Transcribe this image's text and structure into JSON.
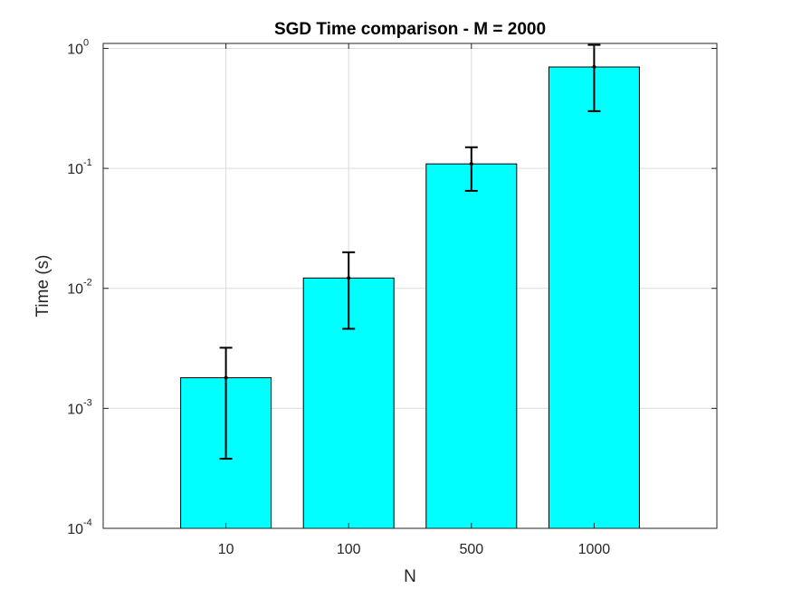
{
  "chart_data": {
    "type": "bar",
    "title": "SGD Time comparison - M = 2000",
    "xlabel": "N",
    "ylabel": "Time (s)",
    "categories": [
      "10",
      "100",
      "500",
      "1000"
    ],
    "values": [
      0.0018,
      0.0122,
      0.109,
      0.7
    ],
    "error_low": [
      0.00038,
      0.0046,
      0.065,
      0.3
    ],
    "error_high": [
      0.0032,
      0.02,
      0.15,
      1.07
    ],
    "y_scale": "log",
    "ylim": [
      0.0001,
      1.1
    ],
    "y_ticks": [
      {
        "base": "10",
        "exp": "-4",
        "value": 0.0001
      },
      {
        "base": "10",
        "exp": "-3",
        "value": 0.001
      },
      {
        "base": "10",
        "exp": "-2",
        "value": 0.01
      },
      {
        "base": "10",
        "exp": "-1",
        "value": 0.1
      },
      {
        "base": "10",
        "exp": "0",
        "value": 1
      }
    ],
    "bar_color": "#00FFFF",
    "edge_color": "#000000",
    "errorbar_color": "#000000",
    "grid": true,
    "legend": "none"
  }
}
